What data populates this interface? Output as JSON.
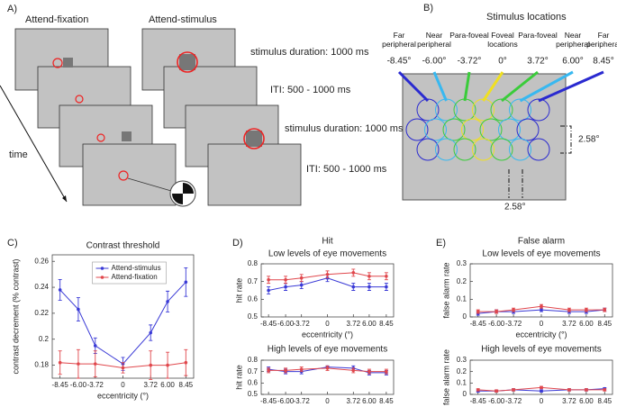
{
  "panel_a": {
    "label": "A)",
    "columns": [
      "Attend-fixation",
      "Attend-stimulus"
    ],
    "steps": [
      "stimulus duration: 1000 ms",
      "ITI: 500 - 1000 ms",
      "stimulus duration: 1000 ms",
      "ITI: 500 - 1000 ms"
    ],
    "time": "time"
  },
  "panel_b": {
    "label": "B)",
    "title": "Stimulus locations",
    "locations": [
      {
        "name": "Far peripheral",
        "value": "-8.45°"
      },
      {
        "name": "Near peripheral",
        "value": "-6.00°"
      },
      {
        "name": "Para-foveal",
        "value": "-3.72°"
      },
      {
        "name": "Foveal locations",
        "value": "0°"
      },
      {
        "name": "Para-foveal",
        "value": "3.72°"
      },
      {
        "name": "Near peripheral",
        "value": "6.00°"
      },
      {
        "name": "Far peripheral",
        "value": "8.45°"
      }
    ],
    "dimensions": [
      "2.58°",
      "2.58°"
    ]
  },
  "chart_data": [
    {
      "type": "line",
      "panel_label": "C)",
      "title": "Contrast threshold",
      "xlabel": "eccentricity (°)",
      "ylabel": "contrast decrement (% contrast)",
      "x": [
        -8.45,
        -6,
        -3.72,
        0,
        3.72,
        6,
        8.45
      ],
      "xlim": [
        -9.5,
        9.5
      ],
      "xticks": [
        -8.45,
        {
          "value": -6,
          "label": "-6.00"
        },
        -3.72,
        0,
        3.72,
        {
          "value": 6,
          "label": "6.00"
        },
        8.45
      ],
      "ylim": [
        0.17,
        0.265
      ],
      "yticks": [
        0.18,
        0.2,
        0.22,
        0.24,
        0.26
      ],
      "legend": "upper center",
      "series": [
        {
          "name": "Attend-stimulus",
          "color": "#3a3ad6",
          "values": [
            0.238,
            0.223,
            0.195,
            0.181,
            0.205,
            0.229,
            0.244
          ],
          "errors": [
            0.008,
            0.009,
            0.006,
            0.005,
            0.006,
            0.008,
            0.011
          ]
        },
        {
          "name": "Attend-fixation",
          "color": "#e0474c",
          "values": [
            0.182,
            0.181,
            0.181,
            0.178,
            0.18,
            0.18,
            0.182
          ],
          "errors": [
            0.009,
            0.011,
            0.01,
            0.004,
            0.011,
            0.01,
            0.01
          ]
        }
      ]
    },
    {
      "type": "line",
      "panel_label": "D)",
      "group_title": "Hit",
      "title": "Low levels of eye movements",
      "xlabel": "eccentricity (°)",
      "ylabel": "hit rate",
      "x": [
        -8.45,
        -6,
        -3.72,
        0,
        3.72,
        6,
        8.45
      ],
      "xlim": [
        -9.5,
        9.5
      ],
      "xticks": [
        -8.45,
        {
          "value": -6,
          "label": "-6.00"
        },
        -3.72,
        0,
        3.72,
        {
          "value": 6,
          "label": "6.00"
        },
        8.45
      ],
      "ylim": [
        0.5,
        0.8
      ],
      "yticks": [
        0.5,
        0.6,
        0.7,
        0.8
      ],
      "series": [
        {
          "color": "#3a3ad6",
          "values": [
            0.65,
            0.67,
            0.68,
            0.72,
            0.67,
            0.67,
            0.67
          ],
          "errors": [
            0.02,
            0.02,
            0.02,
            0.02,
            0.02,
            0.02,
            0.02
          ]
        },
        {
          "color": "#e0474c",
          "values": [
            0.71,
            0.71,
            0.72,
            0.74,
            0.75,
            0.73,
            0.73
          ],
          "errors": [
            0.02,
            0.02,
            0.02,
            0.02,
            0.02,
            0.02,
            0.02
          ]
        }
      ]
    },
    {
      "type": "line",
      "title": "High levels of eye movements",
      "ylabel": "hit rate",
      "x": [
        -8.45,
        -6,
        -3.72,
        0,
        3.72,
        6,
        8.45
      ],
      "xlim": [
        -9.5,
        9.5
      ],
      "xticks": [
        -8.45,
        {
          "value": -6,
          "label": "-6.00"
        },
        -3.72,
        0,
        3.72,
        {
          "value": 6,
          "label": "6.00"
        },
        8.45
      ],
      "ylim": [
        0.5,
        0.8
      ],
      "yticks": [
        0.5,
        0.6,
        0.7,
        0.8
      ],
      "series": [
        {
          "color": "#3a3ad6",
          "values": [
            0.72,
            0.7,
            0.7,
            0.74,
            0.73,
            0.69,
            0.69
          ],
          "errors": [
            0.02,
            0.02,
            0.02,
            0.01,
            0.02,
            0.02,
            0.02
          ]
        },
        {
          "color": "#e0474c",
          "values": [
            0.71,
            0.71,
            0.72,
            0.73,
            0.71,
            0.7,
            0.7
          ],
          "errors": [
            0.02,
            0.02,
            0.02,
            0.02,
            0.02,
            0.02,
            0.02
          ]
        }
      ]
    },
    {
      "type": "line",
      "panel_label": "E)",
      "group_title": "False alarm",
      "title": "Low levels of eye movements",
      "xlabel": "eccentricity (°)",
      "ylabel": "false alarm rate",
      "x": [
        -8.45,
        -6,
        -3.72,
        0,
        3.72,
        6,
        8.45
      ],
      "xlim": [
        -9.5,
        9.5
      ],
      "xticks": [
        -8.45,
        {
          "value": -6,
          "label": "-6.00"
        },
        -3.72,
        0,
        3.72,
        {
          "value": 6,
          "label": "6.00"
        },
        8.45
      ],
      "ylim": [
        0,
        0.3
      ],
      "yticks": [
        0,
        0.1,
        0.2,
        0.3
      ],
      "series": [
        {
          "color": "#3a3ad6",
          "values": [
            0.02,
            0.03,
            0.03,
            0.04,
            0.03,
            0.03,
            0.04
          ],
          "errors": [
            0.01,
            0.01,
            0.01,
            0.01,
            0.01,
            0.01,
            0.01
          ]
        },
        {
          "color": "#e0474c",
          "values": [
            0.03,
            0.03,
            0.04,
            0.06,
            0.04,
            0.04,
            0.04
          ],
          "errors": [
            0.01,
            0.01,
            0.01,
            0.01,
            0.01,
            0.01,
            0.01
          ]
        }
      ]
    },
    {
      "type": "line",
      "title": "High levels of eye movements",
      "ylabel": "false alarm rate",
      "x": [
        -8.45,
        -6,
        -3.72,
        0,
        3.72,
        6,
        8.45
      ],
      "xlim": [
        -9.5,
        9.5
      ],
      "xticks": [
        -8.45,
        {
          "value": -6,
          "label": "-6.00"
        },
        -3.72,
        0,
        3.72,
        {
          "value": 6,
          "label": "6.00"
        },
        8.45
      ],
      "ylim": [
        0,
        0.3
      ],
      "yticks": [
        0,
        0.1,
        0.2,
        0.3
      ],
      "series": [
        {
          "color": "#3a3ad6",
          "values": [
            0.03,
            0.03,
            0.04,
            0.03,
            0.04,
            0.04,
            0.05
          ],
          "errors": [
            0.01,
            0.01,
            0.01,
            0.01,
            0.01,
            0.01,
            0.01
          ]
        },
        {
          "color": "#e0474c",
          "values": [
            0.04,
            0.03,
            0.04,
            0.06,
            0.04,
            0.04,
            0.04
          ],
          "errors": [
            0.01,
            0.01,
            0.01,
            0.01,
            0.01,
            0.01,
            0.01
          ]
        }
      ]
    }
  ]
}
